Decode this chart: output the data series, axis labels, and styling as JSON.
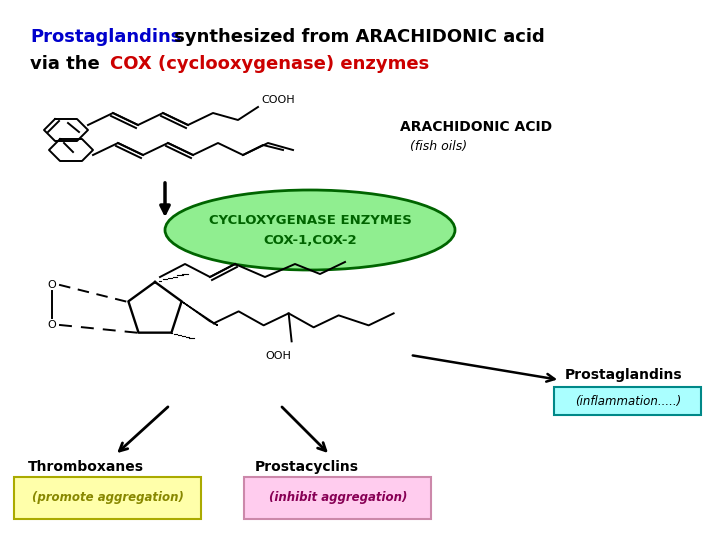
{
  "arachidonic_label": "ARACHIDONIC ACID",
  "fish_oils_label": "(fish oils)",
  "cox_line1": "CYCLOXYGENASE ENZYMES",
  "cox_line2": "COX-1,COX-2",
  "cox_ellipse_color": "#90EE90",
  "cox_text_color": "#006400",
  "prostaglandins_label": "Prostaglandins",
  "inflammation_label": "(inflammation.....)",
  "inflammation_box_facecolor": "#AAFFFF",
  "inflammation_box_edgecolor": "#008888",
  "thromboxanes_label": "Thromboxanes",
  "promote_label": "(promote aggregation)",
  "promote_box_color": "#FFFFAA",
  "promote_text_color": "#888800",
  "prostacyclins_label": "Prostacyclins",
  "inhibit_label": "(inhibit aggregation)",
  "inhibit_box_color": "#FFCCEE",
  "inhibit_text_color": "#880055",
  "bg_color": "#FFFFFF",
  "title_blue": "#0000CC",
  "title_red": "#CC0000",
  "title_black": "#000000"
}
